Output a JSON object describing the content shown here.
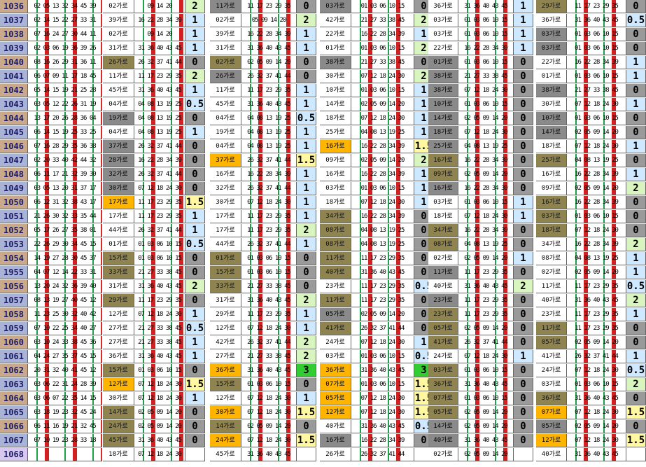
{
  "rows": [
    {
      "n": "1036",
      "nums": "02 05 13 32 34 45 39",
      "g": [
        [
          "02가로",
          "09 14 20",
          "2"
        ],
        [
          "11가로",
          "11 17 23 29 35",
          "0"
        ],
        [
          "03가로",
          "01 03 06 10 15",
          "0"
        ],
        [
          "36가로",
          "31 36 40 43 45",
          "1"
        ],
        [
          "29가로",
          "11 17 23 29 35",
          "0"
        ]
      ]
    },
    {
      "n": "1037",
      "nums": "02 14 15 22 27 33 31",
      "g": [
        [
          "39가로",
          "16 22 28 34 39",
          "1"
        ],
        [
          "02가로",
          "05 09 14 20",
          "2"
        ],
        [
          "42가로",
          "21 27 33 38 45",
          "2"
        ],
        [
          "03가로",
          "01 03 06 10 15",
          "1"
        ],
        [
          "36가로",
          "31 36 40 43 45",
          "0.5"
        ]
      ]
    },
    {
      "n": "1038",
      "nums": "07 16 24 27 30 44 11",
      "g": [
        [
          "02가로",
          "09 14 20",
          "1"
        ],
        [
          "39가로",
          "16 22 28 34 39",
          "1"
        ],
        [
          "22가로",
          "16 22 28 34 39",
          "1"
        ],
        [
          "03가로",
          "01 03 06 10 15",
          "1"
        ],
        [
          "03가로",
          "01 03 06 10 15",
          "0"
        ]
      ]
    },
    {
      "n": "1039",
      "nums": "02 03 06 19 36 39 26",
      "g": [
        [
          "31가로",
          "31 36 40 43 45",
          "1"
        ],
        [
          "31가로",
          "31 36 40 43 45",
          "1"
        ],
        [
          "01가로",
          "01 03 06 10 15",
          "2"
        ],
        [
          "22가로",
          "16 22 28 34 39",
          "1"
        ],
        [
          "03가로",
          "01 03 06 10 15",
          "0"
        ]
      ]
    },
    {
      "n": "1040",
      "nums": "08 16 26 29 31 36 11",
      "g": [
        [
          "26가로",
          "26 32 37 41 44",
          "0"
        ],
        [
          "02가로",
          "02 05 09 14 20",
          "0"
        ],
        [
          "38가로",
          "21 27 33 38 45",
          "0"
        ],
        [
          "01가로",
          "01 03 06 10 15",
          "0"
        ],
        [
          "22가로",
          "16 22 28 34 39",
          "1"
        ]
      ]
    },
    {
      "n": "1041",
      "nums": "06 07 09 11 17 18 45",
      "g": [
        [
          "11가로",
          "11 17 23 29 35",
          "2"
        ],
        [
          "26가로",
          "26 32 37 41 44",
          "0"
        ],
        [
          "30가로",
          "07 12 18 24 30",
          "2"
        ],
        [
          "38가로",
          "21 27 33 38 45",
          "0"
        ],
        [
          "01가로",
          "01 03 06 10 15",
          "1"
        ]
      ]
    },
    {
      "n": "1042",
      "nums": "05 14 15 19 21 25 28",
      "g": [
        [
          "45가로",
          "31 36 40 43 45",
          "1"
        ],
        [
          "11가로",
          "11 17 23 29 35",
          "1"
        ],
        [
          "10가로",
          "01 03 06 10 15",
          "1"
        ],
        [
          "38가로",
          "07 12 18 24 30",
          "0"
        ],
        [
          "38가로",
          "21 27 33 38 45",
          "0"
        ]
      ]
    },
    {
      "n": "1043",
      "nums": "03 05 12 22 26 31 19",
      "g": [
        [
          "04가로",
          "04 08 13 19 25",
          "0.5"
        ],
        [
          "45가로",
          "31 36 40 43 45",
          "1"
        ],
        [
          "14가로",
          "02 05 09 14 20",
          "1"
        ],
        [
          "10가로",
          "01 03 06 10 15",
          "0"
        ],
        [
          "30가로",
          "07 12 18 24 30",
          "1"
        ]
      ]
    },
    {
      "n": "1044",
      "nums": "13 17 20 26 28 36 04",
      "g": [
        [
          "19가로",
          "04 08 13 19 25",
          "0"
        ],
        [
          "04가로",
          "04 08 13 19 25",
          "0.5"
        ],
        [
          "18가로",
          "07 12 18 24 30",
          "1"
        ],
        [
          "14가로",
          "02 05 09 14 20",
          "0"
        ],
        [
          "10가로",
          "01 03 06 10 15",
          "0"
        ]
      ]
    },
    {
      "n": "1045",
      "nums": "06 14 15 19 25 33 25",
      "g": [
        [
          "04가로",
          "04 08 13 19 25",
          "1"
        ],
        [
          "19가로",
          "04 08 13 19 25",
          "1"
        ],
        [
          "25가로",
          "04 08 13 19 25",
          "1"
        ],
        [
          "18가로",
          "07 12 18 24 30",
          "0"
        ],
        [
          "14가로",
          "02 05 09 14 20",
          "0"
        ]
      ]
    },
    {
      "n": "1046",
      "nums": "07 16 28 29 35 36 38",
      "g": [
        [
          "37가로",
          "26 32 37 41 44",
          "0"
        ],
        [
          "04가로",
          "04 08 13 19 25",
          "1"
        ],
        [
          "16가로",
          "16 22 28 34 39",
          "1.5"
        ],
        [
          "25가로",
          "04 08 13 19 25",
          "0"
        ],
        [
          "18가로",
          "07 12 18 24 30",
          "1"
        ]
      ]
    },
    {
      "n": "1047",
      "nums": "02 20 33 40 42 44 32",
      "g": [
        [
          "28가로",
          "16 22 28 34 39",
          "0"
        ],
        [
          "37가로",
          "26 32 37 41 44",
          "1.5"
        ],
        [
          "09가로",
          "02 05 09 14 20",
          "2"
        ],
        [
          "16가로",
          "16 22 28 34 39",
          "0"
        ],
        [
          "25가로",
          "04 08 13 19 25",
          "0"
        ]
      ]
    },
    {
      "n": "1048",
      "nums": "06 11 17 21 32 39 30",
      "g": [
        [
          "32가로",
          "26 32 37 41 44",
          "0"
        ],
        [
          "16가로",
          "16 22 28 34 39",
          "1"
        ],
        [
          "16가로",
          "16 22 28 34 39",
          "1"
        ],
        [
          "09가로",
          "02 05 09 14 20",
          "0"
        ],
        [
          "16가로",
          "16 22 28 34 39",
          "1"
        ]
      ]
    },
    {
      "n": "1049",
      "nums": "03 05 13 20 31 37 17",
      "g": [
        [
          "30가로",
          "07 12 18 24 30",
          "0"
        ],
        [
          "32가로",
          "26 32 37 41 44",
          "1"
        ],
        [
          "03가로",
          "01 03 06 10 15",
          "1"
        ],
        [
          "16가로",
          "16 22 28 34 39",
          "0"
        ],
        [
          "09가로",
          "02 05 09 14 20",
          "2"
        ]
      ]
    },
    {
      "n": "1050",
      "nums": "06 12 31 32 38 43 17",
      "g": [
        [
          "17가로",
          "11 17 23 29 35",
          "1.5"
        ],
        [
          "30가로",
          "07 12 18 24 30",
          "1"
        ],
        [
          "18가로",
          "07 12 18 24 30",
          "1"
        ],
        [
          "03가로",
          "01 03 06 10 15",
          "1"
        ],
        [
          "16가로",
          "16 22 28 34 39",
          "0"
        ]
      ]
    },
    {
      "n": "1051",
      "nums": "21 26 30 32 33 35 44",
      "g": [
        [
          "17가로",
          "11 17 23 29 35",
          "1"
        ],
        [
          "17가로",
          "11 17 23 29 35",
          "1"
        ],
        [
          "34가로",
          "16 22 28 34 39",
          "0"
        ],
        [
          "18가로",
          "07 12 18 24 30",
          "1"
        ],
        [
          "03가로",
          "01 03 06 10 15",
          "0"
        ]
      ]
    },
    {
      "n": "1052",
      "nums": "05 17 26 27 35 38 01",
      "g": [
        [
          "44가로",
          "26 32 37 41 44",
          "1"
        ],
        [
          "17가로",
          "11 17 23 29 35",
          "2"
        ],
        [
          "08가로",
          "04 08 13 19 25",
          "0"
        ],
        [
          "34가로",
          "16 22 28 34 39",
          "0"
        ],
        [
          "18가로",
          "07 12 18 24 30",
          "0"
        ]
      ]
    },
    {
      "n": "1053",
      "nums": "22 26 29 30 34 45 15",
      "g": [
        [
          "01가로",
          "01 03 06 10 15",
          "0.5"
        ],
        [
          "44가로",
          "26 32 37 41 44",
          "1"
        ],
        [
          "08가로",
          "04 08 13 19 25",
          "0"
        ],
        [
          "08가로",
          "04 08 13 19 25",
          "0"
        ],
        [
          "34가로",
          "16 22 28 34 39",
          "2"
        ]
      ]
    },
    {
      "n": "1054",
      "nums": "14 19 27 28 30 45 37",
      "g": [
        [
          "15가로",
          "01 03 06 10 15",
          "0"
        ],
        [
          "01가로",
          "01 03 06 10 15",
          "0"
        ],
        [
          "11가로",
          "11 17 23 29 35",
          "0"
        ],
        [
          "02가로",
          "02 05 09 14 20",
          "1"
        ],
        [
          "08가로",
          "04 08 13 19 25",
          "1"
        ]
      ]
    },
    {
      "n": "1955",
      "nums": "04 07 12 14 22 33 31",
      "g": [
        [
          "33가로",
          "21 27 33 38 45",
          "0"
        ],
        [
          "15가로",
          "01 03 06 10 15",
          "0"
        ],
        [
          "40가로",
          "31 36 40 43 45",
          "0"
        ],
        [
          "11가로",
          "11 17 23 29 35",
          "0"
        ],
        [
          "02가로",
          "02 05 09 14 20",
          "1"
        ]
      ]
    },
    {
      "n": "1056",
      "nums": "13 20 24 32 36 39 40",
      "g": [
        [
          "31가로",
          "31 36 40 43 45",
          "2"
        ],
        [
          "33가로",
          "21 27 33 38 45",
          "0"
        ],
        [
          "23가로",
          "11 17 23 29 35",
          "0.5"
        ],
        [
          "40가로",
          "31 36 40 43 45",
          "2"
        ],
        [
          "11가로",
          "11 17 23 29 35",
          "0.5"
        ]
      ]
    },
    {
      "n": "1057",
      "nums": "08 13 19 27 40 45 12",
      "g": [
        [
          "29가로",
          "11 17 23 29 35",
          "0"
        ],
        [
          "31가로",
          "31 36 40 43 45",
          "2"
        ],
        [
          "11가로",
          "11 17 23 29 35",
          "0"
        ],
        [
          "23가로",
          "11 17 23 29 35",
          "0"
        ],
        [
          "40가로",
          "31 36 40 43 45",
          "2"
        ]
      ]
    },
    {
      "n": "1058",
      "nums": "11 23 25 30 32 40 42",
      "g": [
        [
          "12가로",
          "07 12 18 24 30",
          "1"
        ],
        [
          "29가로",
          "11 17 23 29 35",
          "1"
        ],
        [
          "05가로",
          "02 05 09 14 20",
          "0"
        ],
        [
          "23가로",
          "11 17 23 29 35",
          "0"
        ],
        [
          "23가로",
          "11 17 23 29 35",
          "1"
        ]
      ]
    },
    {
      "n": "1059",
      "nums": "07 10 22 25 34 40 27",
      "g": [
        [
          "27가로",
          "21 27 33 38 45",
          "0.5"
        ],
        [
          "12가로",
          "07 12 18 24 30",
          "1"
        ],
        [
          "41가로",
          "26 32 37 41 44",
          "0"
        ],
        [
          "05가로",
          "02 05 09 14 20",
          "0"
        ],
        [
          "11가로",
          "11 17 23 29 35",
          "0"
        ]
      ]
    },
    {
      "n": "1060",
      "nums": "03 10 24 33 38 45 36",
      "g": [
        [
          "27가로",
          "21 27 33 38 45",
          "1"
        ],
        [
          "42가로",
          "26 32 37 41 44",
          "2"
        ],
        [
          "24가로",
          "07 12 18 24 30",
          "1"
        ],
        [
          "41가로",
          "26 32 37 41 44",
          "0"
        ],
        [
          "05가로",
          "02 05 09 14 20",
          "0"
        ]
      ]
    },
    {
      "n": "1061",
      "nums": "04 24 27 35 37 45 15",
      "g": [
        [
          "36가로",
          "31 36 40 43 45",
          "1"
        ],
        [
          "27가로",
          "21 27 33 38 45",
          "2"
        ],
        [
          "03가로",
          "01 03 06 10 15",
          "0.5"
        ],
        [
          "24가로",
          "07 12 18 24 30",
          "1"
        ],
        [
          "41가로",
          "26 32 37 41 44",
          "1"
        ]
      ]
    },
    {
      "n": "1062",
      "nums": "20 31 32 40 41 45 12",
      "g": [
        [
          "15가로",
          "01 03 06 10 15",
          "0"
        ],
        [
          "36가로",
          "31 36 40 43 45",
          "3"
        ],
        [
          "36가로",
          "31 36 40 43 45",
          "3"
        ],
        [
          "03가로",
          "01 03 06 10 15",
          "0"
        ],
        [
          "24가로",
          "07 12 18 24 30",
          "0.5"
        ]
      ]
    },
    {
      "n": "1063",
      "nums": "03 06 22 31 24 28 39",
      "g": [
        [
          "12가로",
          "07 12 18 24 30",
          "1.5"
        ],
        [
          "15가로",
          "01 03 06 10 15",
          "0"
        ],
        [
          "07가로",
          "01 03 06 10 15",
          "1.5"
        ],
        [
          "36가로",
          "31 36 40 43 45",
          "0"
        ],
        [
          "03가로",
          "01 03 06 10 15",
          "2"
        ]
      ]
    },
    {
      "n": "1064",
      "nums": "03 06 07 22 35 14 15",
      "g": [
        [
          "30가로",
          "07 12 18 24 30",
          "1"
        ],
        [
          "12가로",
          "07 12 18 24 30",
          "1"
        ],
        [
          "05가로",
          "07 12 18 24 30",
          "1.5"
        ],
        [
          "07가로",
          "01 03 06 10 15",
          "0"
        ],
        [
          "36가로",
          "31 36 40 43 45",
          "0"
        ]
      ]
    },
    {
      "n": "1065",
      "nums": "03 18 19 23 32 45 24",
      "g": [
        [
          "14가로",
          "02 05 09 14 20",
          "0"
        ],
        [
          "30가로",
          "07 12 18 24 30",
          "1.5"
        ],
        [
          "12가로",
          "07 12 18 24 30",
          "1.5"
        ],
        [
          "05가로",
          "02 05 09 14 20",
          "0"
        ],
        [
          "07가로",
          "07 12 18 24 30",
          "1.5"
        ]
      ]
    },
    {
      "n": "1066",
      "nums": "06 11 16 19 21 32 45",
      "g": [
        [
          "24가로",
          "02 05 09 14 20",
          "0"
        ],
        [
          "14가로",
          "02 05 09 14 20",
          "0"
        ],
        [
          "40가로",
          "31 36 40 43 45",
          "0.5"
        ],
        [
          "14가로",
          "02 05 09 14 20",
          "0"
        ],
        [
          "05가로",
          "02 05 09 14 20",
          "0"
        ]
      ]
    },
    {
      "n": "1067",
      "nums": "07 10 19 23 28 33 18",
      "g": [
        [
          "45가로",
          "31 36 40 43 45",
          "0"
        ],
        [
          "24가로",
          "07 12 18 24 30",
          "1.5"
        ],
        [
          "16가로",
          "16 22 28 34 39",
          "0"
        ],
        [
          "40가로",
          "31 36 40 43 45",
          "0"
        ],
        [
          "12가로",
          "07 12 18 24 30",
          "1.5"
        ]
      ]
    },
    {
      "n": "1068",
      "nums": "",
      "g": [
        [
          "18가로",
          "07 12 18 24 30",
          ""
        ],
        [
          "45가로",
          "31 36 40 43 45",
          ""
        ],
        [
          "26가로",
          "26 32 37 41 44",
          ""
        ],
        [
          "02가로",
          "02 05 09 14 20",
          ""
        ],
        [
          "40가로",
          "31 36 40 43 45",
          ""
        ]
      ]
    }
  ],
  "colors": {
    "highlight_orange": "#ffb400",
    "highlight_cyan": "#33e6ff",
    "dim_gray": "#8a8a8a",
    "olive": "#8f8450",
    "value_blue": "#cde8ff",
    "value_green": "#d8f5c0",
    "value_yellow": "#fff8a0",
    "value_bright_green": "#33cc33"
  }
}
